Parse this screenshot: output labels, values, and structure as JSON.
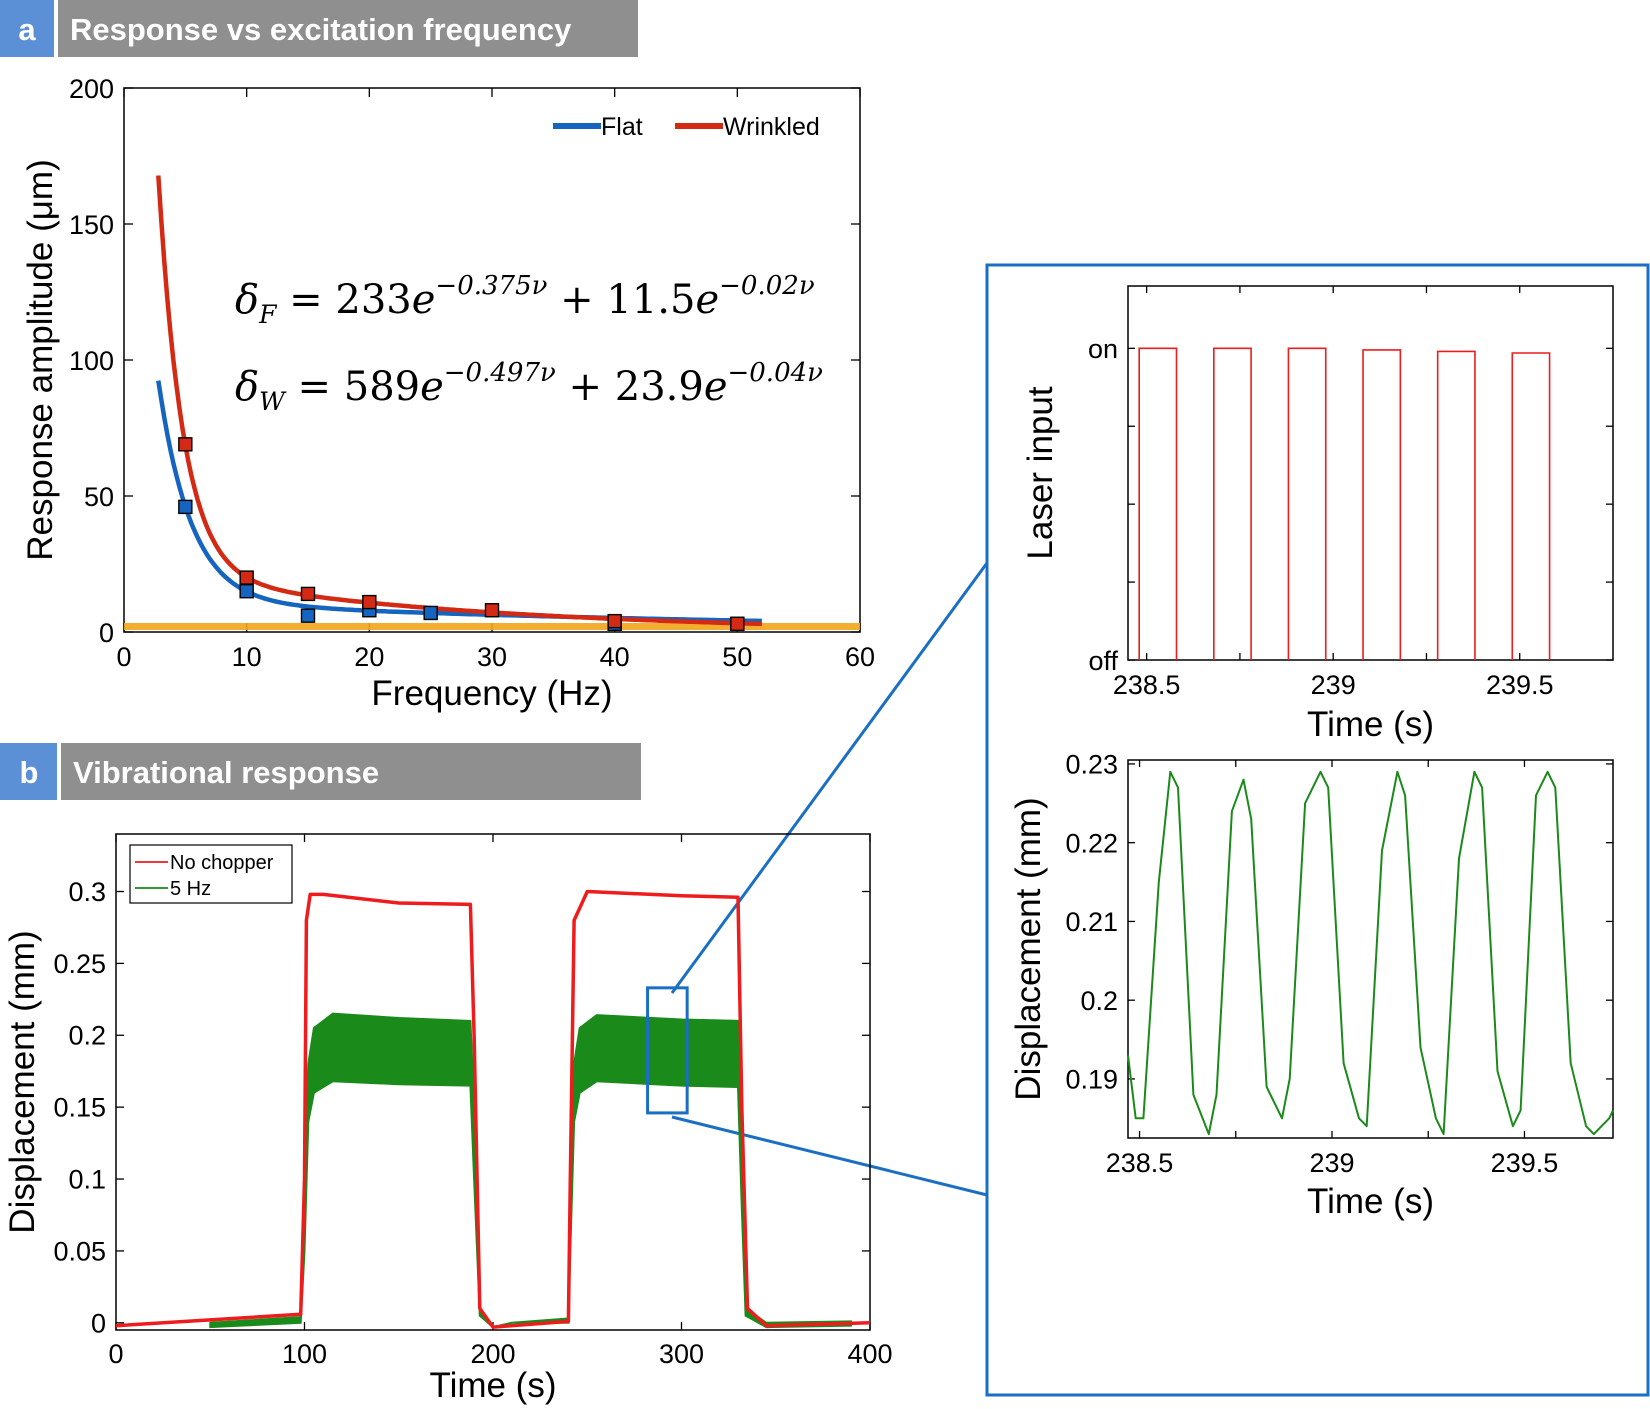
{
  "panel_a": {
    "letter": "a",
    "title": "Response vs excitation frequency",
    "equation_f": "δF = 233e^(−0.375ν) + 11.5e^(−0.02ν)",
    "equation_f_parts": {
      "lhs": "δ",
      "sub": "F",
      "eq": " = 233",
      "e1": "e",
      "exp1": "−0.375ν",
      "mid": " + 11.5",
      "e2": "e",
      "exp2": "−0.02ν"
    },
    "equation_w": "δW = 589e^(−0.497ν) + 23.9e^(−0.04ν)",
    "equation_w_parts": {
      "lhs": "δ",
      "sub": "W",
      "eq": " = 589",
      "e1": "e",
      "exp1": "−0.497ν",
      "mid": " + 23.9",
      "e2": "e",
      "exp2": "−0.04ν"
    }
  },
  "panel_b": {
    "letter": "b",
    "title": "Vibrational response"
  },
  "chart_data": [
    {
      "id": "a",
      "type": "line",
      "xlabel": "Frequency (Hz)",
      "ylabel": "Response amplitude (μm)",
      "xlim": [
        0,
        60
      ],
      "ylim": [
        0,
        200
      ],
      "xticks": [
        0,
        10,
        20,
        30,
        40,
        50,
        60
      ],
      "yticks": [
        0,
        50,
        100,
        150,
        200
      ],
      "legend": "top-right",
      "series": [
        {
          "name": "Flat",
          "color": "#1565c0",
          "fit": {
            "a": 233,
            "b": 0.375,
            "c": 11.5,
            "d": 0.02
          },
          "fit_range": [
            2.8,
            52
          ],
          "points": {
            "x": [
              5,
              10,
              15,
              20,
              25,
              40,
              50
            ],
            "y": [
              46,
              15,
              6,
              8,
              7,
              3,
              3
            ]
          }
        },
        {
          "name": "Wrinkled",
          "color": "#d42a14",
          "fit": {
            "a": 589,
            "b": 0.497,
            "c": 23.9,
            "d": 0.04
          },
          "fit_range": [
            2.8,
            52
          ],
          "points": {
            "x": [
              5,
              10,
              15,
              20,
              30,
              40,
              50
            ],
            "y": [
              69,
              20,
              14,
              11,
              8,
              4,
              3
            ]
          }
        }
      ],
      "baseline": {
        "color": "#f2a61c",
        "value": 2
      }
    },
    {
      "id": "b",
      "type": "line",
      "xlabel": "Time (s)",
      "ylabel": "Displacement (mm)",
      "xlim": [
        0,
        400
      ],
      "ylim": [
        -0.005,
        0.34
      ],
      "xticks": [
        0,
        100,
        200,
        300,
        400
      ],
      "yticks": [
        0,
        0.05,
        0.1,
        0.15,
        0.2,
        0.25,
        0.3
      ],
      "ytick_labels": [
        "0",
        "0.05",
        "0.1",
        "0.15",
        "0.2",
        "0.25",
        "0.3"
      ],
      "legend": "top-left",
      "series": [
        {
          "name": "No chopper",
          "color": "#ee1c1c",
          "x": [
            0,
            50,
            98,
            100,
            101,
            103,
            110,
            150,
            188,
            190,
            193,
            200,
            240,
            241,
            243,
            250,
            300,
            330,
            332,
            335,
            345,
            400
          ],
          "y": [
            -0.002,
            0.002,
            0.006,
            0.1,
            0.28,
            0.298,
            0.298,
            0.292,
            0.291,
            0.2,
            0.01,
            -0.003,
            0.001,
            0.1,
            0.28,
            0.3,
            0.297,
            0.296,
            0.15,
            0.01,
            -0.002,
            0.0
          ]
        },
        {
          "name": "5 Hz",
          "color": "#1a8a1a",
          "x": [
            50,
            98,
            100,
            102,
            105,
            115,
            150,
            188,
            190,
            193,
            200,
            210,
            240,
            241,
            243,
            246,
            255,
            300,
            330,
            332,
            334,
            345,
            390
          ],
          "upper": [
            0.0,
            0.004,
            0.1,
            0.18,
            0.205,
            0.215,
            0.212,
            0.21,
            0.15,
            0.01,
            -0.003,
            0.0,
            0.003,
            0.1,
            0.18,
            0.205,
            0.214,
            0.211,
            0.21,
            0.12,
            0.01,
            0.0,
            0.001
          ],
          "lower": [
            -0.003,
            0.0,
            0.05,
            0.14,
            0.16,
            0.168,
            0.166,
            0.165,
            0.1,
            0.005,
            -0.003,
            0.0,
            0.0,
            0.05,
            0.14,
            0.16,
            0.168,
            0.165,
            0.164,
            0.08,
            0.005,
            -0.003,
            -0.002
          ]
        }
      ],
      "zoom_region": {
        "x": [
          282,
          303
        ],
        "y": [
          0.146,
          0.233
        ]
      }
    },
    {
      "id": "c",
      "type": "line",
      "xlabel": "Time (s)",
      "ylabel": "Laser input",
      "xlim": [
        238.45,
        239.75
      ],
      "ylim": [
        0,
        1.2
      ],
      "xticks": [
        238.5,
        239,
        239.5
      ],
      "yticks": [
        0,
        1
      ],
      "ytick_labels": [
        "off",
        "on"
      ],
      "series": [
        {
          "name": "",
          "color": "#ee1c1c",
          "period": 0.2,
          "on_duration": 0.1,
          "pulse_starts": [
            238.48,
            238.68,
            238.88,
            239.08,
            239.28,
            239.48
          ],
          "pulse_levels": [
            1,
            1,
            1,
            0.995,
            0.99,
            0.985
          ]
        }
      ]
    },
    {
      "id": "d",
      "type": "line",
      "xlabel": "Time (s)",
      "ylabel": "Displacement (mm)",
      "xlim": [
        238.47,
        239.73
      ],
      "ylim": [
        0.1825,
        0.2305
      ],
      "xticks": [
        238.5,
        239,
        239.5
      ],
      "yticks": [
        0.19,
        0.2,
        0.21,
        0.22,
        0.23
      ],
      "ytick_labels": [
        "0.19",
        "0.2",
        "0.21",
        "0.22",
        "0.23"
      ],
      "series": [
        {
          "name": "",
          "color": "#1a8a1a",
          "x": [
            238.47,
            238.49,
            238.51,
            238.55,
            238.58,
            238.6,
            238.64,
            238.68,
            238.7,
            238.74,
            238.77,
            238.79,
            238.83,
            238.87,
            238.89,
            238.93,
            238.97,
            238.99,
            239.03,
            239.07,
            239.09,
            239.13,
            239.17,
            239.19,
            239.23,
            239.27,
            239.29,
            239.33,
            239.37,
            239.39,
            239.43,
            239.47,
            239.49,
            239.53,
            239.56,
            239.58,
            239.62,
            239.66,
            239.68,
            239.72,
            239.73
          ],
          "y": [
            0.193,
            0.185,
            0.185,
            0.215,
            0.229,
            0.227,
            0.188,
            0.183,
            0.188,
            0.224,
            0.228,
            0.223,
            0.189,
            0.185,
            0.19,
            0.225,
            0.229,
            0.227,
            0.192,
            0.185,
            0.184,
            0.219,
            0.229,
            0.226,
            0.194,
            0.185,
            0.183,
            0.218,
            0.229,
            0.227,
            0.191,
            0.184,
            0.186,
            0.226,
            0.229,
            0.227,
            0.192,
            0.184,
            0.183,
            0.185,
            0.186
          ]
        }
      ]
    }
  ]
}
